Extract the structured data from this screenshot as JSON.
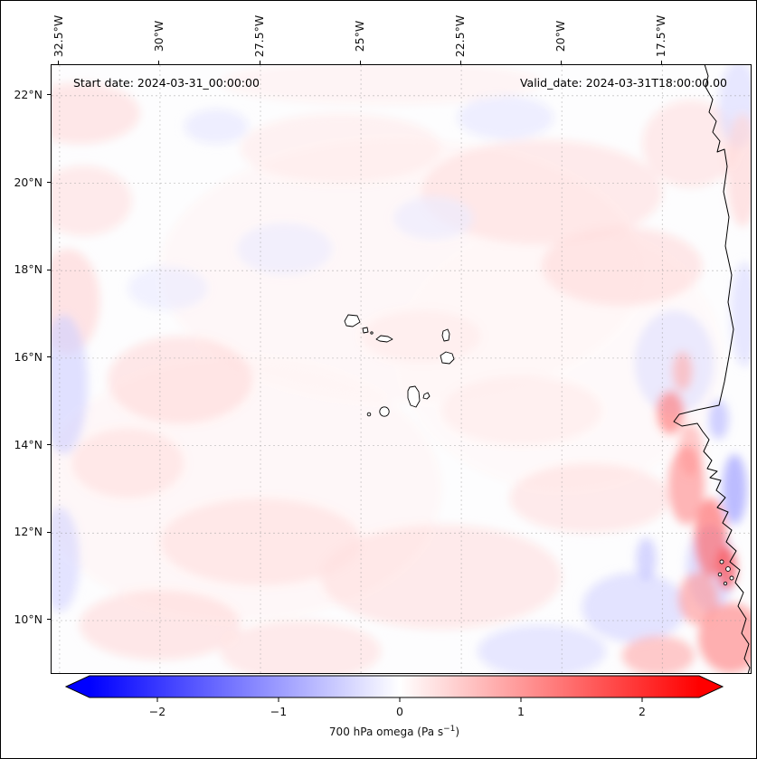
{
  "header": {
    "start_date_label": "Start date: 2024-03-31_00:00:00",
    "valid_date_label": "Valid_date: 2024-03-31T18:00:00.00"
  },
  "axes": {
    "x_ticks": [
      {
        "lon": -32.5,
        "label": "32.5°W"
      },
      {
        "lon": -30.0,
        "label": "30°W"
      },
      {
        "lon": -27.5,
        "label": "27.5°W"
      },
      {
        "lon": -25.0,
        "label": "25°W"
      },
      {
        "lon": -22.5,
        "label": "22.5°W"
      },
      {
        "lon": -20.0,
        "label": "20°W"
      },
      {
        "lon": -17.5,
        "label": "17.5°W"
      }
    ],
    "y_ticks": [
      {
        "lat": 22,
        "label": "22°N"
      },
      {
        "lat": 20,
        "label": "20°N"
      },
      {
        "lat": 18,
        "label": "18°N"
      },
      {
        "lat": 16,
        "label": "16°N"
      },
      {
        "lat": 14,
        "label": "14°N"
      },
      {
        "lat": 12,
        "label": "12°N"
      },
      {
        "lat": 10,
        "label": "10°N"
      }
    ]
  },
  "colorbar": {
    "ticks": [
      {
        "value": -2,
        "label": "−2"
      },
      {
        "value": -1,
        "label": "−1"
      },
      {
        "value": 0,
        "label": "0"
      },
      {
        "value": 1,
        "label": "1"
      },
      {
        "value": 2,
        "label": "2"
      }
    ],
    "label_prefix": "700 hPa omega (Pa s",
    "label_sup": "−1",
    "label_suffix": ")",
    "min_color": "#0000ff",
    "zero_color": "#ffffff",
    "max_color": "#ff0000",
    "vmin": -2.5,
    "vmax": 2.5,
    "extend": "both"
  },
  "chart_data": {
    "type": "heatmap",
    "title": "",
    "variable": "700 hPa omega",
    "units": "Pa s⁻¹",
    "colormap": "bwr",
    "value_range": [
      -2.5,
      2.5
    ],
    "lon_range": [
      -32.7,
      -15.3
    ],
    "lat_range": [
      8.8,
      22.7
    ],
    "x_tick_values_deg_west": [
      32.5,
      30,
      27.5,
      25,
      22.5,
      20,
      17.5
    ],
    "y_tick_values_deg_north": [
      22,
      20,
      18,
      16,
      14,
      12,
      10
    ],
    "region": "Eastern tropical North Atlantic: Cape Verde islands and West African coast (Mauritania/Senegal)",
    "field_summary": "Mostly weak omega (|ω| ≲ 0.3 Pa/s, pale pink/blue mottling) over the open ocean; stronger alternating ascent/descent bands (|ω| up to ~1.5–2 Pa/s) hugging the West African coast south of 16°N and in the bottom-right corner",
    "features": [
      {
        "lon": -32.0,
        "lat": 21.6,
        "rlon": 1.5,
        "rlat": 0.7,
        "omega": 0.35
      },
      {
        "lon": -31.9,
        "lat": 19.6,
        "rlon": 1.2,
        "rlat": 0.8,
        "omega": 0.3
      },
      {
        "lon": -24.0,
        "lat": 18.0,
        "rlon": 6.0,
        "rlat": 3.0,
        "omega": 0.1
      },
      {
        "lon": -28.0,
        "lat": 13.0,
        "rlon": 5.0,
        "rlat": 3.0,
        "omega": 0.1
      },
      {
        "lon": -20.0,
        "lat": 16.0,
        "rlon": 4.0,
        "rlat": 3.0,
        "omega": 0.08
      },
      {
        "lon": -29.5,
        "lat": 15.5,
        "rlon": 1.8,
        "rlat": 1.0,
        "omega": 0.35
      },
      {
        "lon": -30.8,
        "lat": 13.6,
        "rlon": 1.4,
        "rlat": 0.8,
        "omega": 0.3
      },
      {
        "lon": -25.5,
        "lat": 20.8,
        "rlon": 2.5,
        "rlat": 0.8,
        "omega": 0.2
      },
      {
        "lon": -20.5,
        "lat": 19.8,
        "rlon": 3.0,
        "rlat": 1.2,
        "omega": 0.3
      },
      {
        "lon": -18.5,
        "lat": 18.1,
        "rlon": 2.0,
        "rlat": 0.9,
        "omega": 0.35
      },
      {
        "lon": -23.5,
        "lat": 16.5,
        "rlon": 1.5,
        "rlat": 0.6,
        "omega": 0.2
      },
      {
        "lon": -27.5,
        "lat": 11.8,
        "rlon": 2.5,
        "rlat": 1.0,
        "omega": 0.3
      },
      {
        "lon": -23.0,
        "lat": 11.0,
        "rlon": 3.0,
        "rlat": 1.2,
        "omega": 0.3
      },
      {
        "lon": -19.3,
        "lat": 12.8,
        "rlon": 2.0,
        "rlat": 0.8,
        "omega": 0.3
      },
      {
        "lon": -30.0,
        "lat": 9.9,
        "rlon": 2.0,
        "rlat": 0.8,
        "omega": 0.35
      },
      {
        "lon": -16.8,
        "lat": 20.9,
        "rlon": 1.2,
        "rlat": 1.0,
        "omega": 0.3
      },
      {
        "lon": -24.5,
        "lat": 22.3,
        "rlon": 4.0,
        "rlat": 0.5,
        "omega": 0.15
      },
      {
        "lon": -32.3,
        "lat": 17.3,
        "rlon": 0.8,
        "rlat": 1.2,
        "omega": 0.4
      },
      {
        "lon": -21.0,
        "lat": 14.8,
        "rlon": 2.0,
        "rlat": 0.8,
        "omega": 0.2
      },
      {
        "lon": -26.5,
        "lat": 9.3,
        "rlon": 2.0,
        "rlat": 0.7,
        "omega": 0.3
      },
      {
        "lon": -32.4,
        "lat": 15.4,
        "rlon": 0.6,
        "rlat": 1.6,
        "omega": -0.45
      },
      {
        "lon": -32.5,
        "lat": 11.4,
        "rlon": 0.5,
        "rlat": 1.2,
        "omega": -0.4
      },
      {
        "lon": -26.9,
        "lat": 18.5,
        "rlon": 1.2,
        "rlat": 0.6,
        "omega": -0.2
      },
      {
        "lon": -21.4,
        "lat": 21.5,
        "rlon": 1.2,
        "rlat": 0.5,
        "omega": -0.25
      },
      {
        "lon": -17.2,
        "lat": 15.9,
        "rlon": 1.0,
        "rlat": 1.2,
        "omega": -0.3
      },
      {
        "lon": -23.2,
        "lat": 19.2,
        "rlon": 1.0,
        "rlat": 0.5,
        "omega": -0.2
      },
      {
        "lon": -28.6,
        "lat": 21.3,
        "rlon": 0.8,
        "rlat": 0.4,
        "omega": -0.25
      },
      {
        "lon": -18.2,
        "lat": 10.3,
        "rlon": 1.3,
        "rlat": 0.8,
        "omega": -0.4
      },
      {
        "lon": -16.3,
        "lat": 11.2,
        "rlon": 0.6,
        "rlat": 1.0,
        "omega": -0.5
      },
      {
        "lon": -20.5,
        "lat": 9.3,
        "rlon": 1.6,
        "rlat": 0.6,
        "omega": -0.35
      },
      {
        "lon": -15.6,
        "lat": 21.8,
        "rlon": 0.5,
        "rlat": 1.0,
        "omega": -0.35
      },
      {
        "lon": -29.8,
        "lat": 17.6,
        "rlon": 1.0,
        "rlat": 0.5,
        "omega": -0.2
      },
      {
        "lon": -17.3,
        "lat": 14.75,
        "rlon": 0.35,
        "rlat": 0.5,
        "omega": 1.3
      },
      {
        "lon": -16.8,
        "lat": 13.9,
        "rlon": 0.3,
        "rlat": 0.6,
        "omega": 0.8
      },
      {
        "lon": -16.9,
        "lat": 13.1,
        "rlon": 0.45,
        "rlat": 0.9,
        "omega": 1.1
      },
      {
        "lon": -16.3,
        "lat": 11.9,
        "rlon": 0.4,
        "rlat": 0.9,
        "omega": 1.5
      },
      {
        "lon": -15.8,
        "lat": 9.6,
        "rlon": 0.8,
        "rlat": 0.8,
        "omega": 1.2
      },
      {
        "lon": -16.6,
        "lat": 10.5,
        "rlon": 0.5,
        "rlat": 0.6,
        "omega": 1.0
      },
      {
        "lon": -15.7,
        "lat": 13.0,
        "rlon": 0.3,
        "rlat": 0.8,
        "omega": -1.0
      },
      {
        "lon": -17.9,
        "lat": 11.4,
        "rlon": 0.25,
        "rlat": 0.5,
        "omega": -0.6
      },
      {
        "lon": -15.45,
        "lat": 17.0,
        "rlon": 0.35,
        "rlat": 1.2,
        "omega": -0.35
      },
      {
        "lon": -15.5,
        "lat": 20.3,
        "rlon": 0.4,
        "rlat": 1.3,
        "omega": 0.4
      },
      {
        "lon": -17.0,
        "lat": 15.7,
        "rlon": 0.25,
        "rlat": 0.45,
        "omega": 0.8
      },
      {
        "lon": -15.9,
        "lat": 11.2,
        "rlon": 0.25,
        "rlat": 0.5,
        "omega": 1.8
      },
      {
        "lon": -17.6,
        "lat": 9.2,
        "rlon": 0.9,
        "rlat": 0.45,
        "omega": 0.8
      },
      {
        "lon": -16.1,
        "lat": 14.6,
        "rlon": 0.25,
        "rlat": 0.45,
        "omega": -0.7
      }
    ]
  },
  "grid": {
    "color": "#999999",
    "style": "dashed"
  }
}
